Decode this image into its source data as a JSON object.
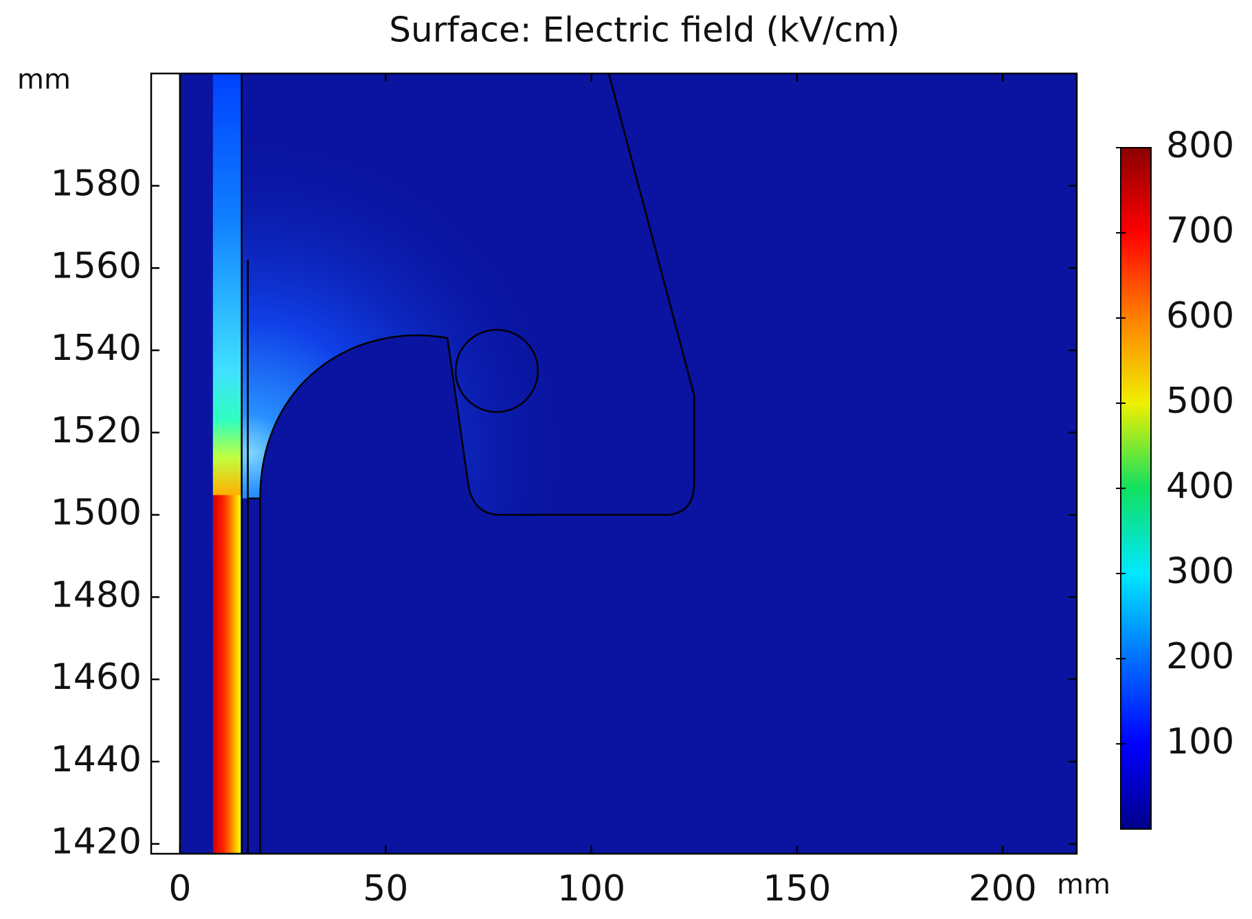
{
  "chart_data": {
    "type": "surface",
    "title": "Surface: Electric field (kV/cm)",
    "x_unit": "mm",
    "y_unit": "mm",
    "xlim": [
      -7,
      218
    ],
    "ylim": [
      1417.6,
      1607.3
    ],
    "xticks": [
      0,
      50,
      100,
      150,
      200
    ],
    "yticks": [
      1420,
      1440,
      1460,
      1480,
      1500,
      1520,
      1540,
      1560,
      1580
    ],
    "colorbar": {
      "lim": [
        0,
        800
      ],
      "ticks": [
        100,
        200,
        300,
        400,
        500,
        600,
        700,
        800
      ]
    }
  }
}
